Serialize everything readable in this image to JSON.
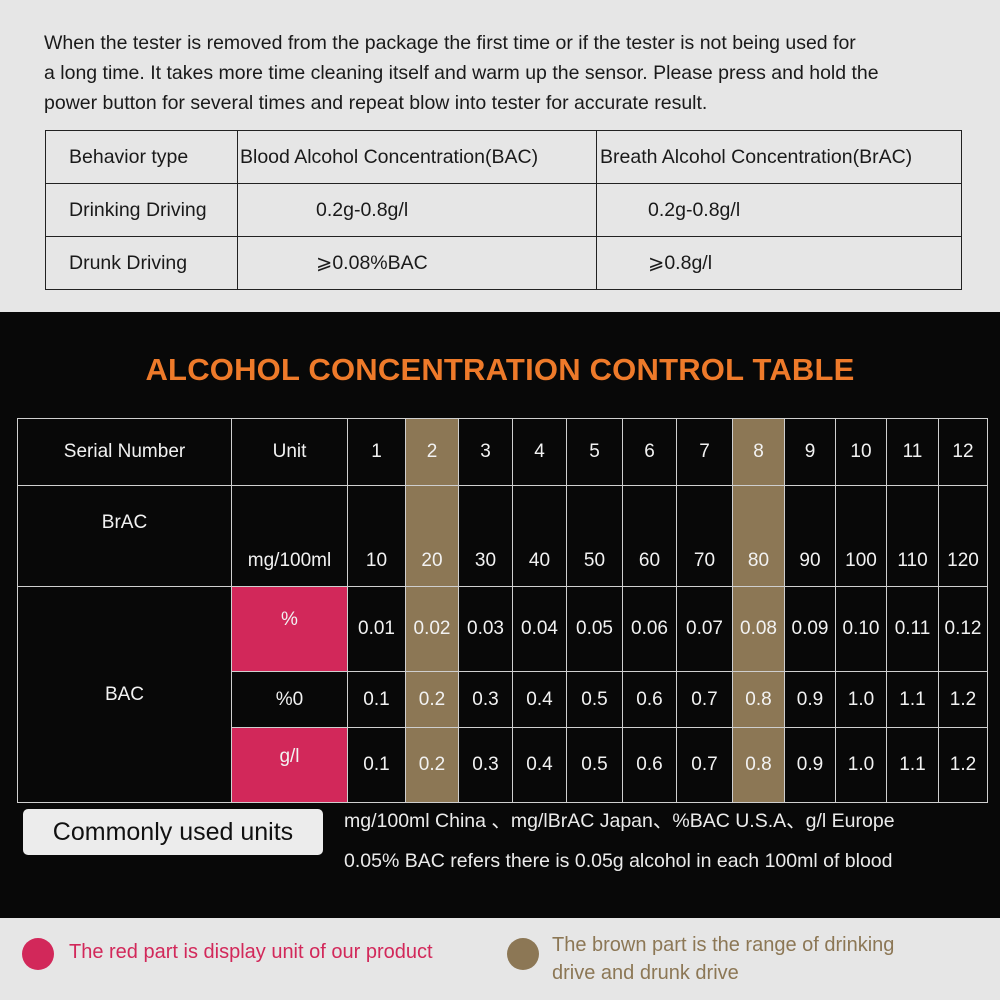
{
  "intro": {
    "line1": "When the tester is removed from the package the first time or if the tester is not being used  for",
    "line2": " a long time. It takes more time cleaning itself and warm up the sensor. Please press and hold the",
    "line3": "power button for several times and repeat blow into tester for accurate result."
  },
  "behavior_table": {
    "headers": [
      "Behavior type",
      "Blood Alcohol Concentration(BAC)",
      "Breath Alcohol Concentration(BrAC)"
    ],
    "rows": [
      [
        "Drinking Driving",
        "0.2g-0.8g/l",
        "0.2g-0.8g/l"
      ],
      [
        "Drunk Driving",
        "⩾0.08%BAC",
        "⩾0.8g/l"
      ]
    ]
  },
  "control_table": {
    "title": "ALCOHOL CONCENTRATION CONTROL TABLE",
    "serial_label": "Serial Number",
    "unit_label": "Unit",
    "serials": [
      "1",
      "2",
      "3",
      "4",
      "5",
      "6",
      "7",
      "8",
      "9",
      "10",
      "11",
      "12"
    ],
    "brac_label": "BrAC",
    "brac_unit": "mg/100ml",
    "brac_values": [
      "10",
      "20",
      "30",
      "40",
      "50",
      "60",
      "70",
      "80",
      "90",
      "100",
      "110",
      "120"
    ],
    "bac_label": "BAC",
    "bac_rows": [
      {
        "unit": "%",
        "highlight": "red",
        "values": [
          "0.01",
          "0.02",
          "0.03",
          "0.04",
          "0.05",
          "0.06",
          "0.07",
          "0.08",
          "0.09",
          "0.10",
          "0.11",
          "0.12"
        ]
      },
      {
        "unit": "%0",
        "highlight": "none",
        "values": [
          "0.1",
          "0.2",
          "0.3",
          "0.4",
          "0.5",
          "0.6",
          "0.7",
          "0.8",
          "0.9",
          "1.0",
          "1.1",
          "1.2"
        ]
      },
      {
        "unit": "g/l",
        "highlight": "red",
        "values": [
          "0.1",
          "0.2",
          "0.3",
          "0.4",
          "0.5",
          "0.6",
          "0.7",
          "0.8",
          "0.9",
          "1.0",
          "1.1",
          "1.2"
        ]
      }
    ],
    "brown_columns": [
      "2",
      "8"
    ]
  },
  "units": {
    "badge": "Commonly used units",
    "line1": "mg/100ml China 、mg/lBrAC Japan、%BAC U.S.A、g/l Europe",
    "line2": "0.05%  BAC refers there is 0.05g alcohol in each 100ml of blood"
  },
  "legend": {
    "red_text": "The red part is display unit of our product",
    "brown_line1": "The brown part is the range of drinking",
    "brown_line2": " drive and drunk drive"
  },
  "colors": {
    "red": "#d2285a",
    "brown": "#8c7755",
    "title_orange": "#ee7a2a",
    "dark_bg": "#080808",
    "light_bg": "#e6e6e6"
  }
}
